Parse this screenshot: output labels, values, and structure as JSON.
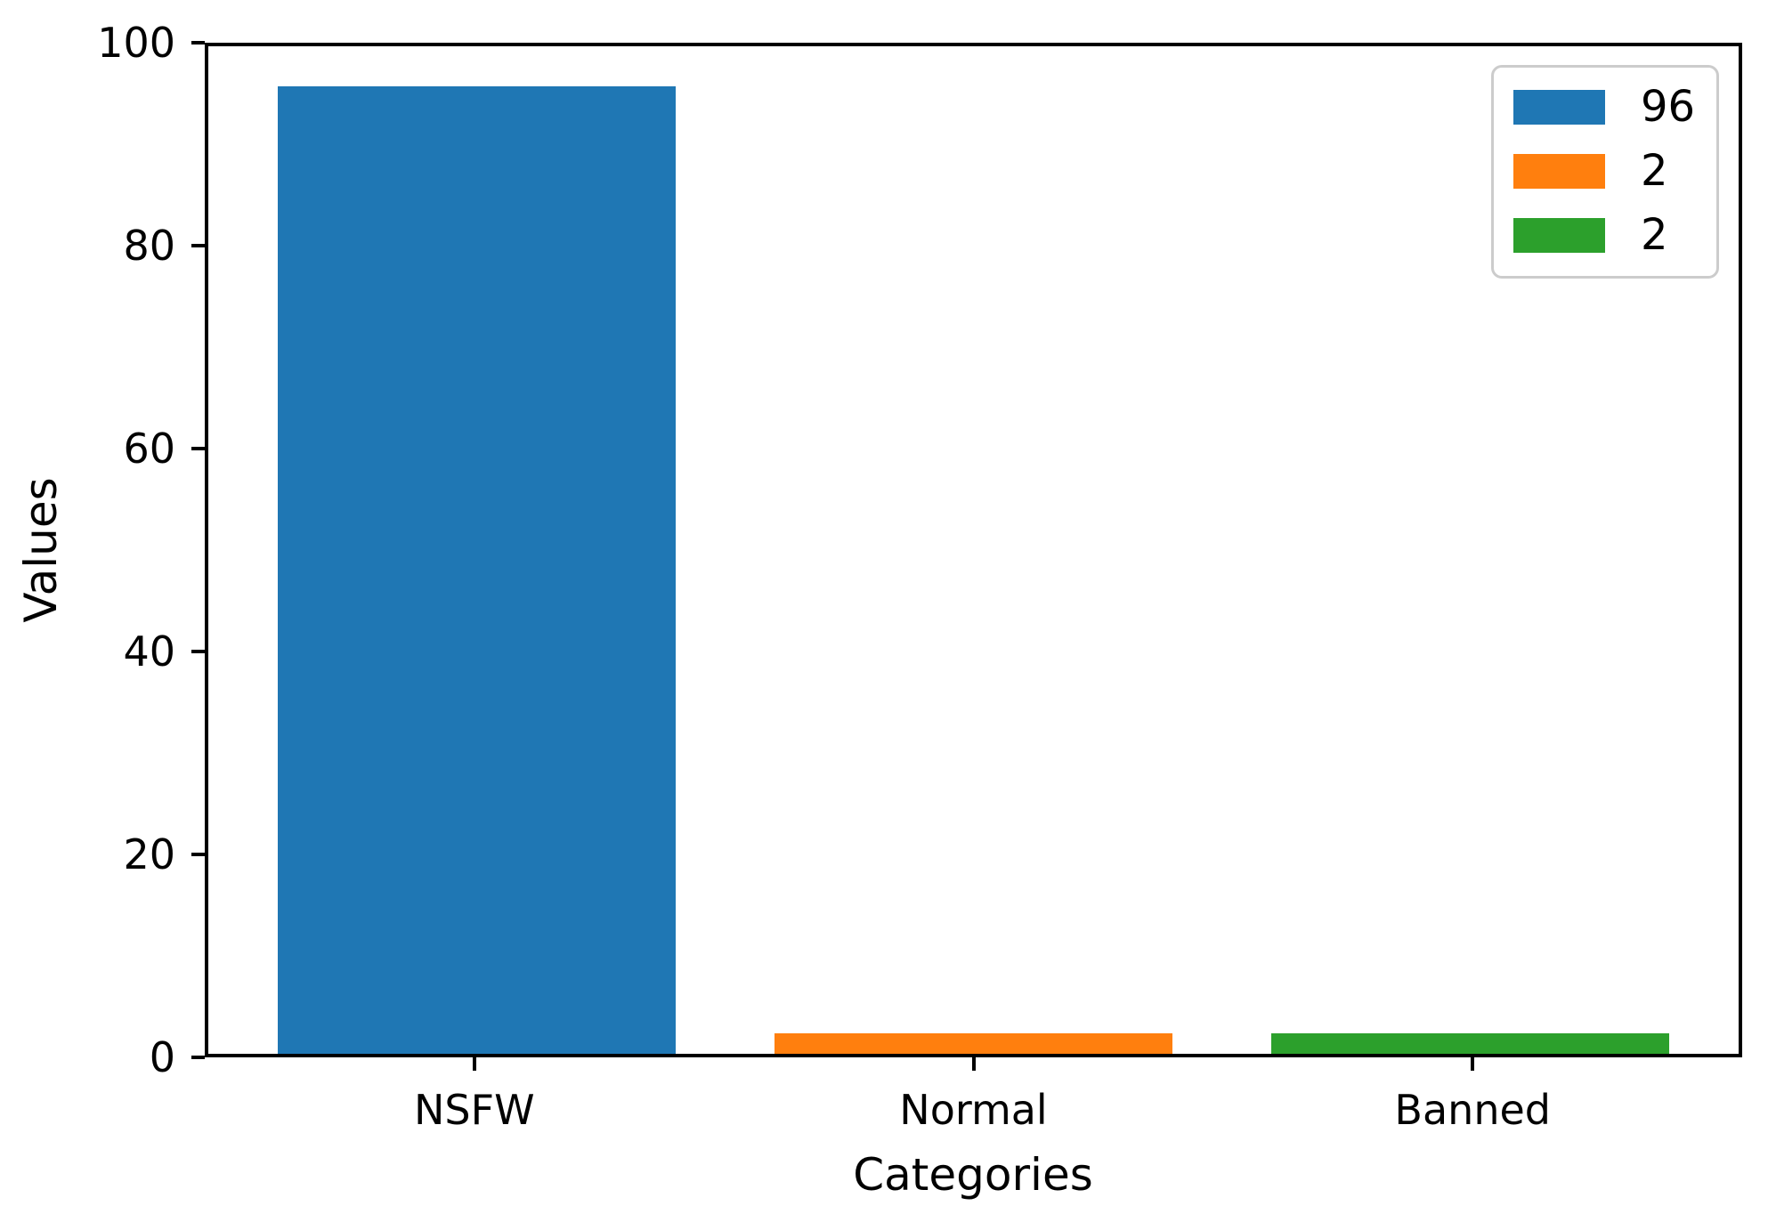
{
  "chart_data": {
    "type": "bar",
    "title": "",
    "xlabel": "Categories",
    "ylabel": "Values",
    "categories": [
      "NSFW",
      "Normal",
      "Banned"
    ],
    "values": [
      96,
      2,
      2
    ],
    "bar_colors": [
      "#1f77b4",
      "#ff7f0e",
      "#2ca02c"
    ],
    "ylim": [
      0,
      100
    ],
    "yticks": [
      0,
      20,
      40,
      60,
      80,
      100
    ],
    "grid": false,
    "background_color": "#ffffff",
    "legend": {
      "position": "upper right",
      "entries": [
        {
          "label": "96",
          "color": "#1f77b4"
        },
        {
          "label": "2",
          "color": "#ff7f0e"
        },
        {
          "label": "2",
          "color": "#2ca02c"
        }
      ]
    }
  }
}
